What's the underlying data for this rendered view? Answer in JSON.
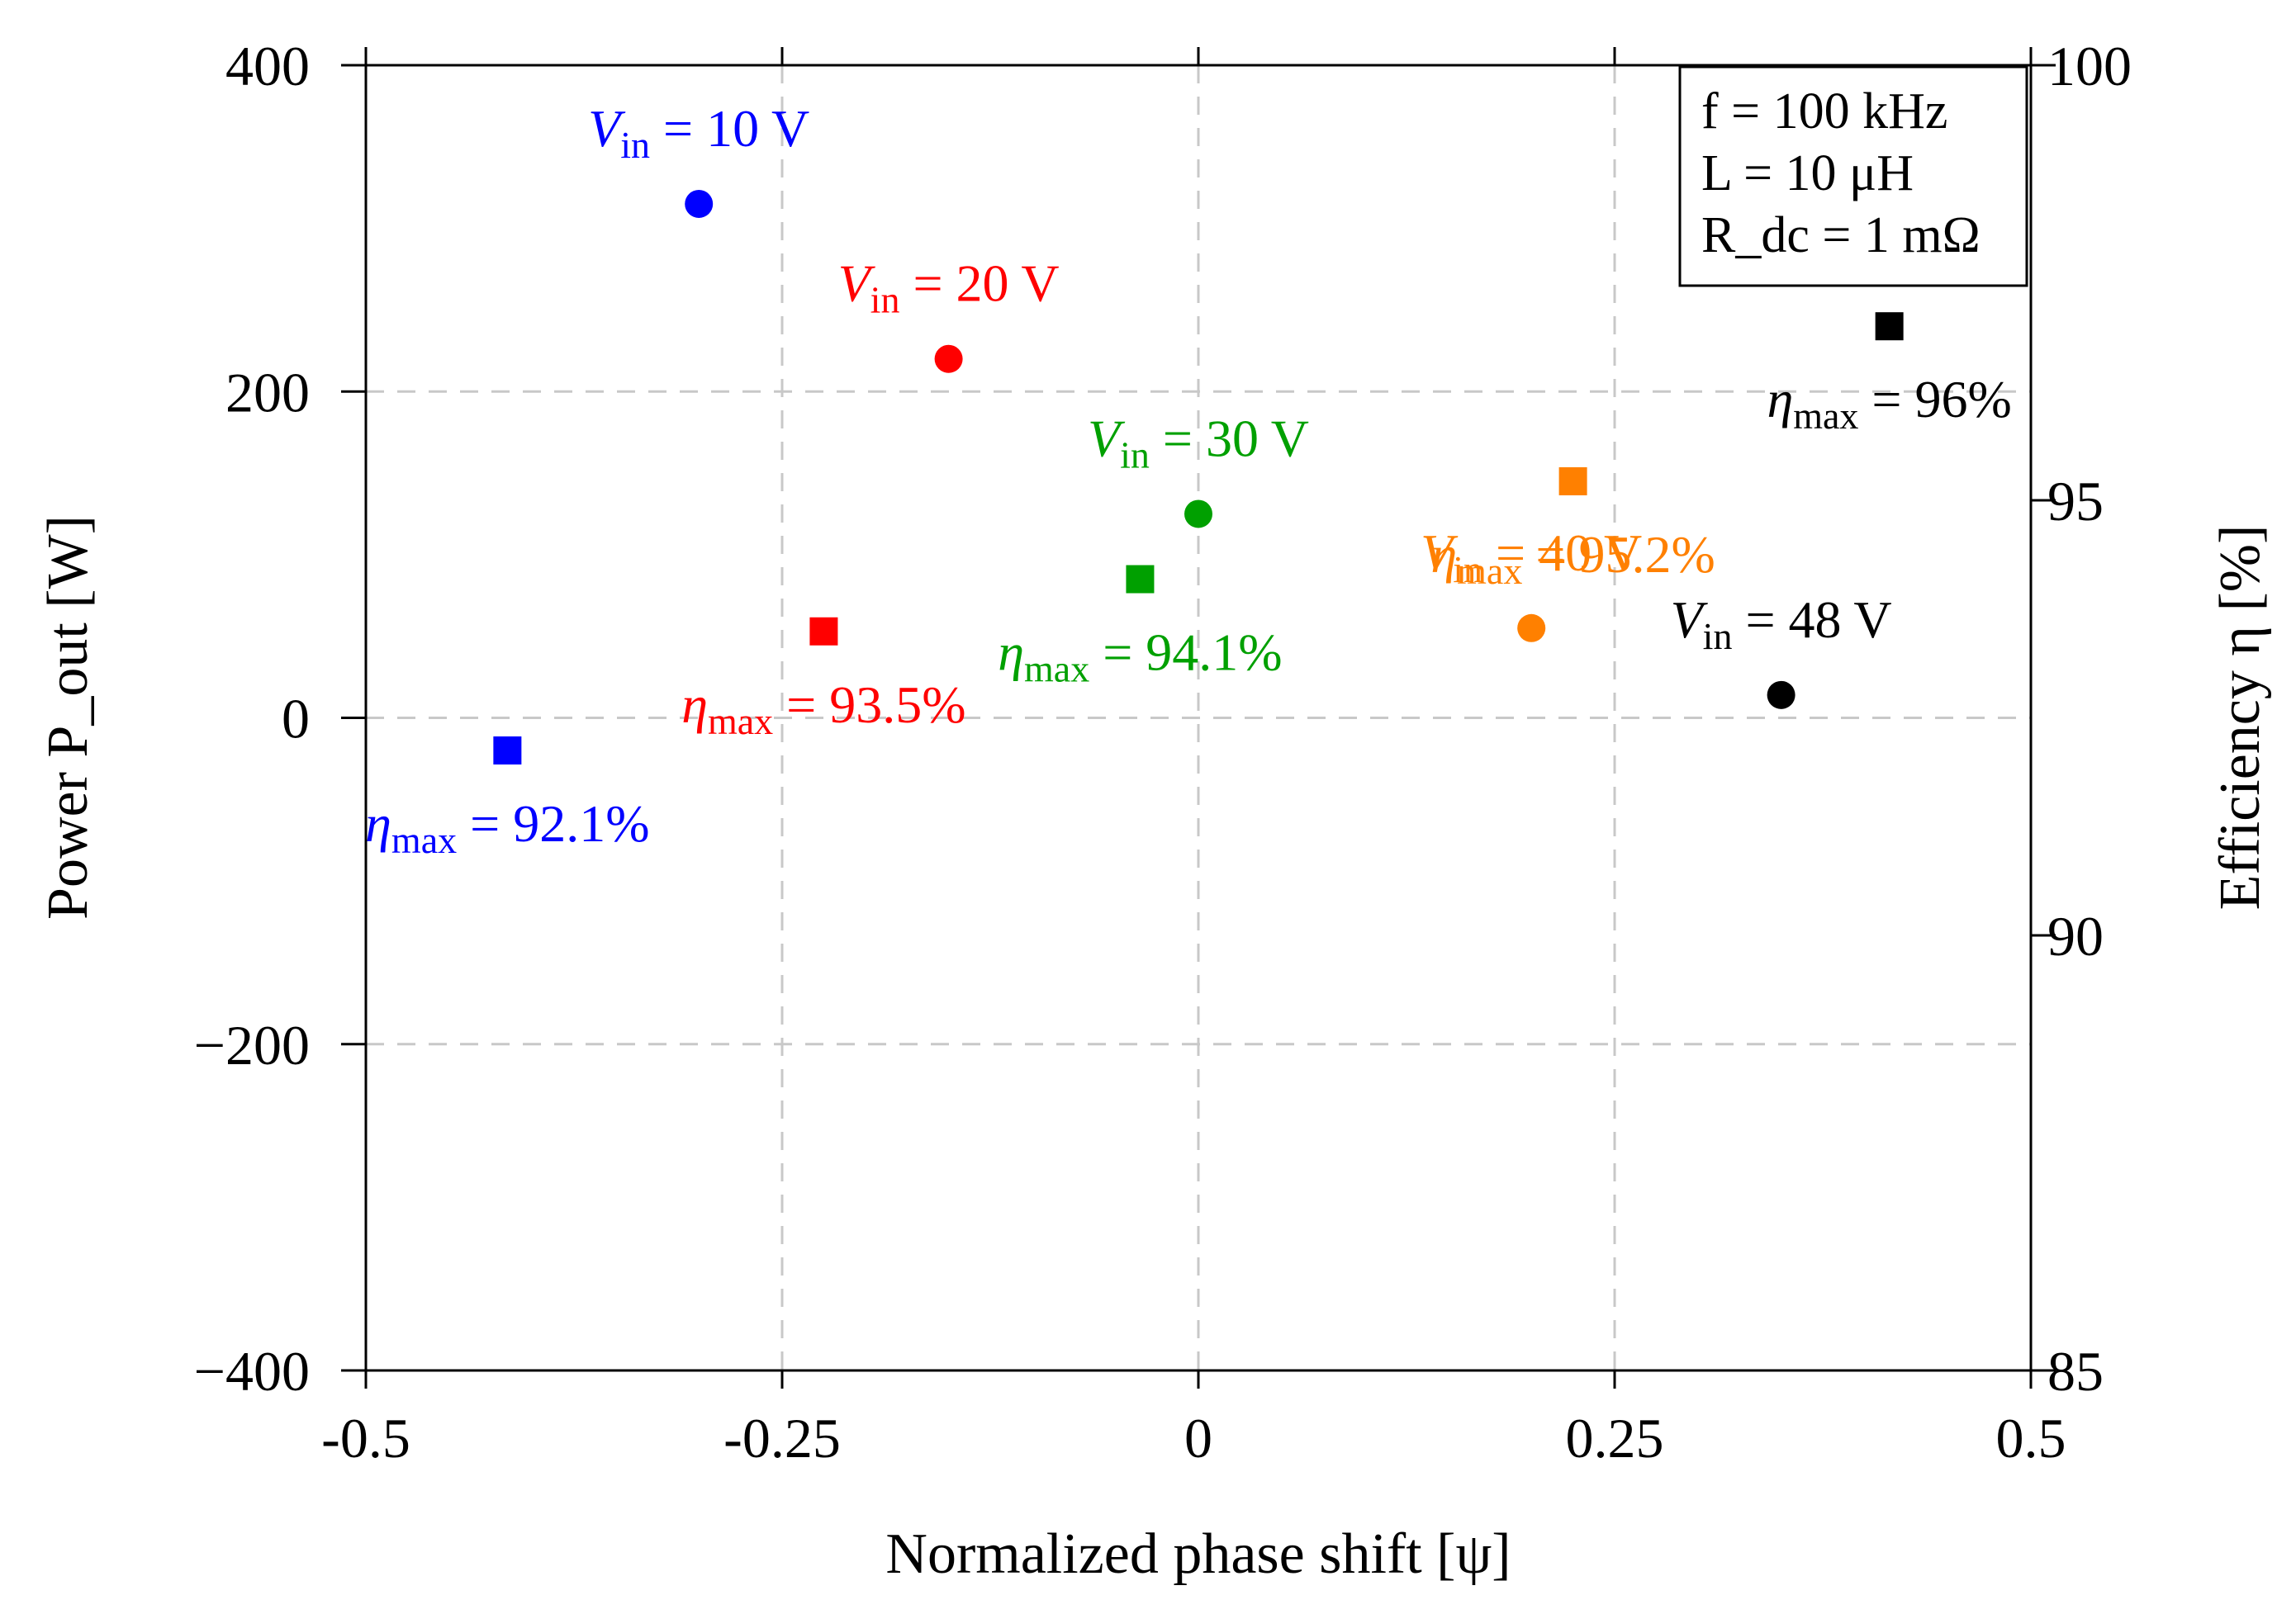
{
  "chart_data": {
    "type": "scatter",
    "xlabel": "Normalized phase shift [ψ]",
    "ylabel_left": "Power P_out [W]",
    "ylabel_right": "Efficiency η [%]",
    "xlim": [
      -0.5,
      0.5
    ],
    "ylim_left": [
      -400,
      400
    ],
    "ylim_right": [
      85,
      100
    ],
    "x_ticks": [
      -0.5,
      -0.25,
      0,
      0.25,
      0.5
    ],
    "x_tick_labels": [
      "-0.5",
      "-0.25",
      "0",
      "0.25",
      "0.5"
    ],
    "y_left_ticks": [
      400,
      200,
      0,
      -200,
      -400
    ],
    "y_left_tick_labels": [
      "400",
      "200",
      "0",
      "−200",
      "−400"
    ],
    "y_right_ticks": [
      100,
      95,
      90,
      85
    ],
    "y_right_tick_labels": [
      "100",
      "95",
      "90",
      "85"
    ],
    "grid": true,
    "parameters": [
      "f = 100 kHz",
      "L = 10 μH",
      "R_dc = 1 mΩ"
    ],
    "parameter_box_position": "top-right",
    "series": [
      {
        "name": "V_in = 10 V",
        "color": "#0000ff",
        "power_point": {
          "x": -0.3,
          "y": 315
        },
        "efficiency_point": {
          "x": -0.415,
          "y": -20
        },
        "power_label": {
          "var": "V",
          "sub": "in",
          "value": " = 10 V"
        },
        "efficiency_label": {
          "var": "η",
          "sub": "max",
          "value": " = 92.1%"
        }
      },
      {
        "name": "V_in = 20 V",
        "color": "#ff0000",
        "power_point": {
          "x": -0.15,
          "y": 220
        },
        "efficiency_point": {
          "x": -0.225,
          "y": 53
        },
        "power_label": {
          "var": "V",
          "sub": "in",
          "value": " = 20 V"
        },
        "efficiency_label": {
          "var": "η",
          "sub": "max",
          "value": " = 93.5%"
        }
      },
      {
        "name": "V_in = 30 V",
        "color": "#00a000",
        "power_point": {
          "x": 0.0,
          "y": 125
        },
        "efficiency_point": {
          "x": -0.035,
          "y": 85
        },
        "power_label": {
          "var": "V",
          "sub": "in",
          "value": " = 30 V"
        },
        "efficiency_label": {
          "var": "η",
          "sub": "max",
          "value": " = 94.1%"
        }
      },
      {
        "name": "V_in = 40 V",
        "color": "#ff8000",
        "power_point": {
          "x": 0.2,
          "y": 55
        },
        "efficiency_point": {
          "x": 0.225,
          "y": 145
        },
        "power_label": {
          "var": "V",
          "sub": "in",
          "value": " = 40 V"
        },
        "efficiency_label": {
          "var": "η",
          "sub": "max",
          "value": " = 95.2%"
        }
      },
      {
        "name": "V_in = 48 V",
        "color": "#000000",
        "power_point": {
          "x": 0.35,
          "y": 14
        },
        "efficiency_point": {
          "x": 0.415,
          "y": 240
        },
        "power_label": {
          "var": "V",
          "sub": "in",
          "value": " = 48 V"
        },
        "efficiency_label": {
          "var": "η",
          "sub": "max",
          "value": " = 96%"
        }
      }
    ]
  }
}
